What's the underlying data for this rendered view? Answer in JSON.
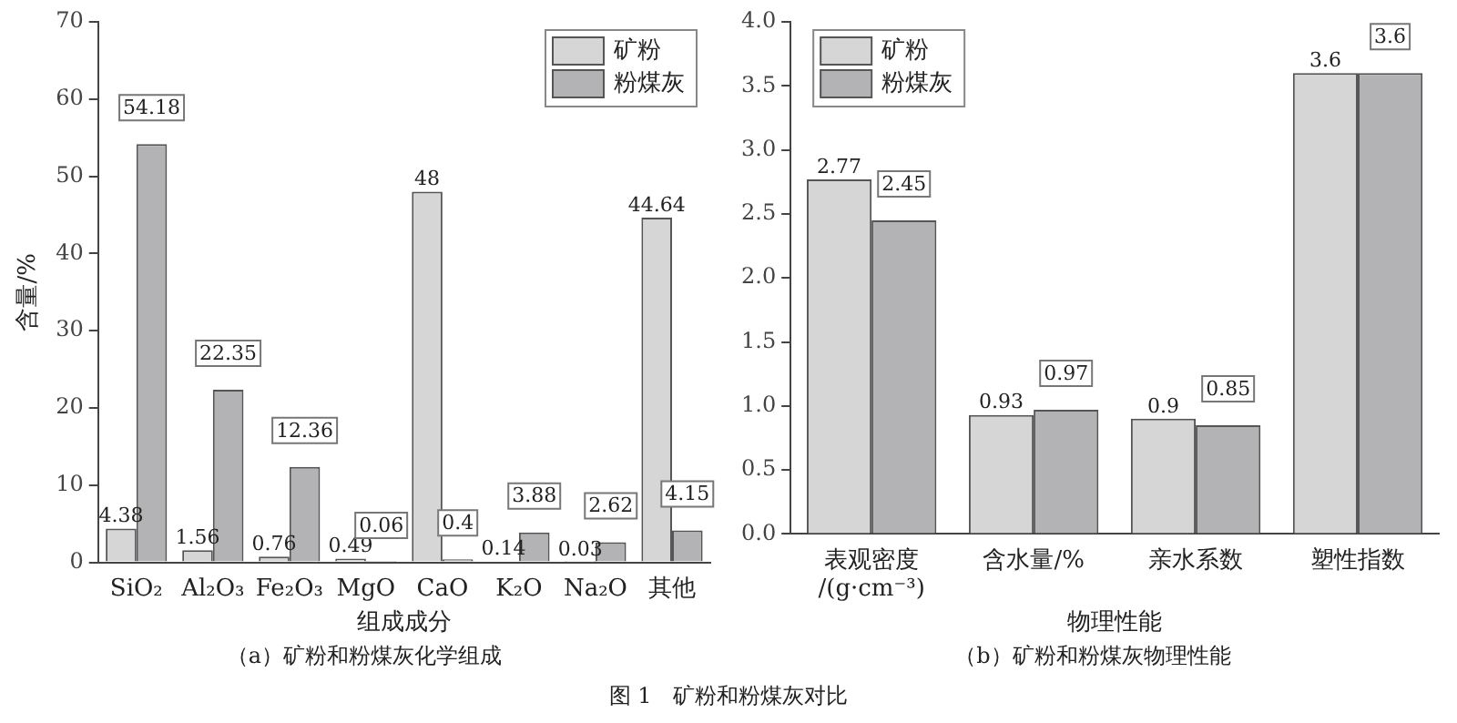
{
  "chart_data": [
    {
      "type": "bar",
      "title": "（a）矿粉和粉煤灰化学组成",
      "xlabel": "组成成分",
      "ylabel": "含量/%",
      "categories": [
        "SiO₂",
        "Al₂O₃",
        "Fe₂O₃",
        "MgO",
        "CaO",
        "K₂O",
        "Na₂O",
        "其他"
      ],
      "series": [
        {
          "name": "矿粉",
          "color": "#d6d6d6",
          "values": [
            4.38,
            1.56,
            0.76,
            0.49,
            48,
            0.14,
            0.03,
            44.64
          ]
        },
        {
          "name": "粉煤灰",
          "color": "#b3b3b5",
          "values": [
            54.18,
            22.35,
            12.36,
            0.06,
            0.4,
            3.88,
            2.62,
            4.15
          ]
        }
      ],
      "ylim": [
        0,
        70
      ],
      "yticks": [
        0,
        10,
        20,
        30,
        40,
        50,
        60,
        70
      ],
      "grid": false,
      "legend": "top right",
      "data_labels": true,
      "annotations": [
        "图 1　矿粉和粉煤灰对比"
      ]
    },
    {
      "type": "bar",
      "title": "（b）矿粉和粉煤灰物理性能",
      "xlabel": "物理性能",
      "categories": [
        "表观密度/(g·cm⁻³)",
        "含水量/%",
        "亲水系数",
        "塑性指数"
      ],
      "series": [
        {
          "name": "矿粉",
          "color": "#d6d6d6",
          "values": [
            2.77,
            0.93,
            0.9,
            3.6
          ]
        },
        {
          "name": "粉煤灰",
          "color": "#b3b3b5",
          "values": [
            2.45,
            0.97,
            0.85,
            3.6
          ]
        }
      ],
      "ylim": [
        0,
        4
      ],
      "yticks": [
        {
          "value": 0,
          "label": "0.0"
        },
        {
          "value": 0.5,
          "label": "0.5"
        },
        {
          "value": 1,
          "label": "1.0"
        },
        {
          "value": 1.5,
          "label": "1.5"
        },
        {
          "value": 2,
          "label": "2.0"
        },
        {
          "value": 2.5,
          "label": "2.5"
        },
        {
          "value": 3,
          "label": "3.0"
        },
        {
          "value": 3.5,
          "label": "3.5"
        },
        {
          "value": 4,
          "label": "4.0"
        }
      ],
      "grid": false,
      "legend": "top left",
      "data_labels": true
    }
  ]
}
